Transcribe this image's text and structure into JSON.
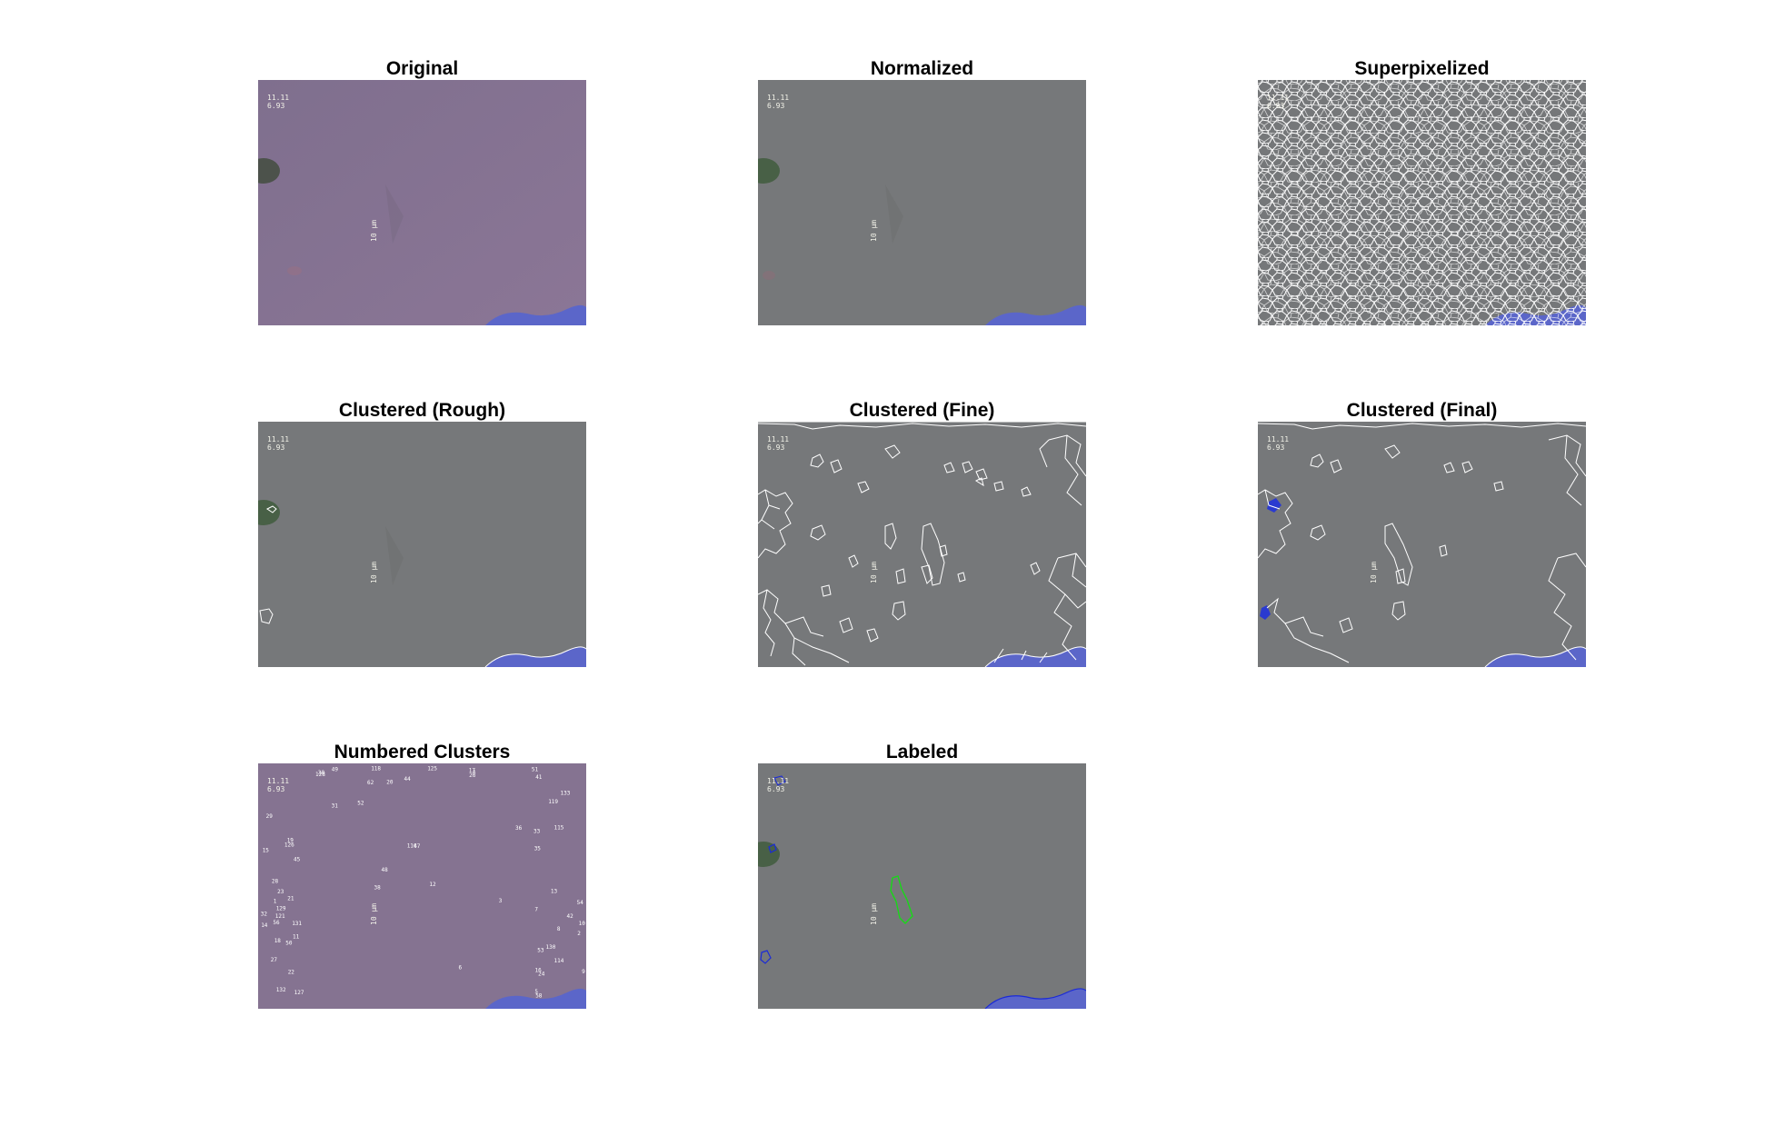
{
  "colors": {
    "original_bg": "#857391",
    "normalized_bg": "#76787a",
    "blob": "#5b66c9",
    "superpixel_line": "#ffffff",
    "labeled_outline_green": "#18d818",
    "labeled_outline_blue": "#1a2ad8"
  },
  "overlay_text": {
    "line1": "11.11",
    "line2": "6.93",
    "scale_bar": "10 μm"
  },
  "panels": [
    {
      "title": "Original"
    },
    {
      "title": "Normalized"
    },
    {
      "title": "Superpixelized"
    },
    {
      "title": "Clustered (Rough)"
    },
    {
      "title": "Clustered (Fine)"
    },
    {
      "title": "Clustered (Final)"
    },
    {
      "title": "Numbered Clusters"
    },
    {
      "title": "Labeled"
    }
  ],
  "cluster_numbers": [
    "133",
    "129",
    "131",
    "130",
    "128",
    "126",
    "125",
    "127",
    "132",
    "121",
    "118",
    "116",
    "119",
    "48",
    "45",
    "47",
    "44",
    "49",
    "41",
    "42",
    "38",
    "114",
    "115",
    "19",
    "22",
    "24",
    "26",
    "28",
    "18",
    "62",
    "56",
    "58",
    "54",
    "53",
    "52",
    "50",
    "51",
    "31",
    "32",
    "36",
    "33",
    "35",
    "27",
    "29",
    "30",
    "23",
    "21",
    "20",
    "17",
    "16",
    "15",
    "14",
    "13",
    "12",
    "11",
    "10",
    "9",
    "8",
    "7",
    "6",
    "5",
    "4",
    "3",
    "2",
    "1"
  ]
}
